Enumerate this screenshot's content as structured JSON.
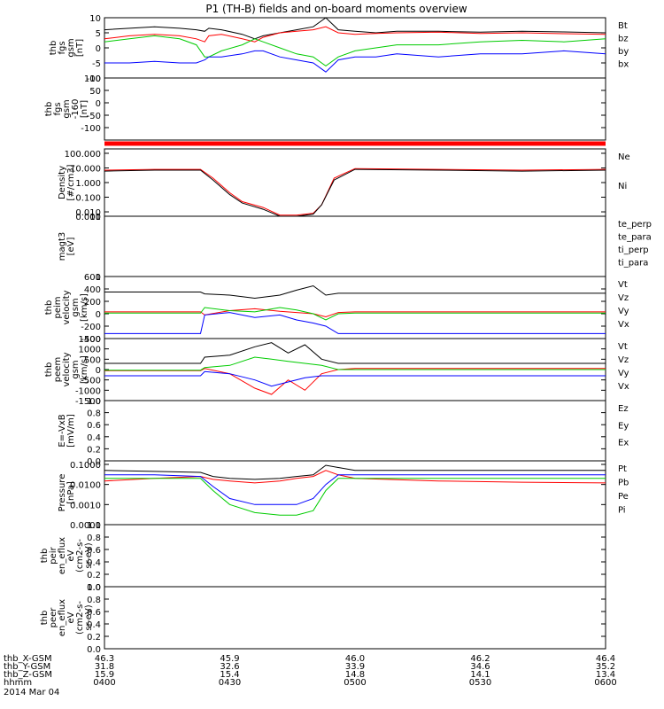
{
  "title": "P1  (TH-B) fields and on-board moments overview",
  "colors": {
    "black": "#000000",
    "red": "#ff0000",
    "green": "#00cc00",
    "blue": "#0000ff"
  },
  "chart_data": [
    {
      "id": "fgs",
      "type": "line",
      "ylabel": [
        "thb",
        "fgs",
        "gsm",
        "[nT]"
      ],
      "ylim": [
        -10,
        10
      ],
      "yticks": [
        10,
        5,
        0,
        -5,
        -10
      ],
      "legend": [
        {
          "name": "Bt",
          "color": "black"
        },
        {
          "name": "bz",
          "color": "red"
        },
        {
          "name": "by",
          "color": "green"
        },
        {
          "name": "bx",
          "color": "blue"
        }
      ],
      "time_range": [
        "0400",
        "0600"
      ],
      "series": [
        {
          "name": "Bt",
          "color": "black",
          "x": [
            0,
            6,
            12,
            18,
            22,
            24,
            25,
            28,
            33,
            36,
            38,
            42,
            46,
            50,
            53,
            56,
            60,
            65,
            70,
            80,
            90,
            100,
            110,
            120
          ],
          "y": [
            6,
            6.5,
            7,
            6.5,
            6,
            5.5,
            6.5,
            6,
            4.5,
            3,
            4,
            5,
            6,
            7,
            10,
            6,
            5.5,
            5,
            5.5,
            5.5,
            5.2,
            5.5,
            5.3,
            5
          ]
        },
        {
          "name": "bz",
          "color": "red",
          "x": [
            0,
            6,
            12,
            18,
            22,
            24,
            25,
            28,
            33,
            36,
            38,
            42,
            46,
            50,
            53,
            56,
            60,
            65,
            70,
            80,
            90,
            100,
            110,
            120
          ],
          "y": [
            3,
            4,
            4.5,
            4,
            3,
            2,
            4,
            4.5,
            3,
            2,
            3.5,
            5,
            5.5,
            6,
            7,
            5,
            4.5,
            4.8,
            5,
            5.2,
            4.8,
            5,
            4.7,
            4.5
          ]
        },
        {
          "name": "by",
          "color": "green",
          "x": [
            0,
            6,
            12,
            18,
            22,
            24,
            25,
            28,
            33,
            36,
            38,
            42,
            46,
            50,
            53,
            56,
            60,
            65,
            70,
            80,
            90,
            100,
            110,
            120
          ],
          "y": [
            2,
            3,
            4,
            3,
            1,
            -3,
            -3,
            -1,
            1,
            3,
            2,
            0,
            -2,
            -3,
            -6,
            -3,
            -1,
            0,
            1,
            1,
            2,
            2.5,
            2,
            3
          ]
        },
        {
          "name": "bx",
          "color": "blue",
          "x": [
            0,
            6,
            12,
            18,
            22,
            24,
            25,
            28,
            33,
            36,
            38,
            42,
            46,
            50,
            53,
            56,
            60,
            65,
            70,
            80,
            90,
            100,
            110,
            120
          ],
          "y": [
            -5,
            -5,
            -4.5,
            -5,
            -5,
            -4,
            -3,
            -3,
            -2,
            -1,
            -1,
            -3,
            -4,
            -5,
            -8,
            -4,
            -3,
            -3,
            -2,
            -3,
            -2,
            -2,
            -1,
            -2
          ]
        }
      ]
    },
    {
      "id": "fgs-160",
      "type": "line",
      "ylabel": [
        "thb",
        "fgs",
        "gsm",
        "-160",
        "[nT]"
      ],
      "ylim": [
        -150,
        100
      ],
      "yticks": [
        100,
        50,
        0,
        -50,
        -100
      ],
      "legend": [],
      "time_range": [
        "0400",
        "0600"
      ],
      "series": []
    },
    {
      "id": "density",
      "type": "line",
      "yscale": "log",
      "ylabel": [
        "Density",
        "[#/cm3]"
      ],
      "ylim": [
        0.005,
        200
      ],
      "yticks": [
        "100.000",
        "10.000",
        "1.000",
        "0.100",
        "0.010",
        "0.001"
      ],
      "ytick_values": [
        100,
        10,
        1,
        0.1,
        0.01,
        0.001
      ],
      "legend": [
        {
          "name": "Ne",
          "color": "red"
        },
        {
          "name": "Ni",
          "color": "black"
        }
      ],
      "time_range": [
        "0400",
        "0600"
      ],
      "series": [
        {
          "name": "Ne",
          "color": "red",
          "x": [
            0,
            12,
            23,
            26,
            30,
            33,
            38,
            42,
            46,
            50,
            52,
            55,
            60,
            80,
            100,
            120
          ],
          "y": [
            7,
            8,
            8,
            2,
            0.2,
            0.05,
            0.02,
            0.006,
            0.006,
            0.008,
            0.03,
            2,
            9,
            8,
            7,
            8
          ]
        },
        {
          "name": "Ni",
          "color": "black",
          "x": [
            0,
            12,
            23,
            26,
            30,
            33,
            38,
            42,
            46,
            50,
            52,
            55,
            60,
            80,
            100,
            120
          ],
          "y": [
            6,
            7,
            7,
            1.5,
            0.15,
            0.04,
            0.015,
            0.005,
            0.005,
            0.007,
            0.03,
            1.5,
            8,
            7,
            6,
            7
          ]
        }
      ]
    },
    {
      "id": "mag",
      "type": "line",
      "yscale": "log",
      "ylabel": [
        "magt3",
        "[eV]"
      ],
      "ylim": [
        1,
        10
      ],
      "yticks": [
        "10",
        "1"
      ],
      "ytick_values": [
        10,
        1
      ],
      "legend": [
        {
          "name": "te_perp",
          "color": "black"
        },
        {
          "name": "te_para",
          "color": "red"
        },
        {
          "name": "ti_perp",
          "color": "green"
        },
        {
          "name": "ti_para",
          "color": "blue"
        }
      ],
      "time_range": [
        "0400",
        "0600"
      ],
      "series": []
    },
    {
      "id": "peim",
      "type": "line",
      "ylabel": [
        "thb",
        "peim",
        "velocity",
        "gsm",
        "[km/s]"
      ],
      "ylim": [
        -400,
        600
      ],
      "yticks": [
        600,
        400,
        200,
        0,
        -200,
        -400
      ],
      "legend": [
        {
          "name": "Vt",
          "color": "black"
        },
        {
          "name": "Vz",
          "color": "red"
        },
        {
          "name": "Vy",
          "color": "green"
        },
        {
          "name": "Vx",
          "color": "blue"
        }
      ],
      "time_range": [
        "0400",
        "0600"
      ],
      "series": [
        {
          "name": "Vt",
          "color": "black",
          "x": [
            0,
            23,
            24,
            30,
            36,
            42,
            46,
            50,
            53,
            56,
            60,
            80,
            100,
            120
          ],
          "y": [
            350,
            350,
            320,
            300,
            250,
            300,
            380,
            450,
            300,
            330,
            330,
            330,
            330,
            330
          ]
        },
        {
          "name": "Vz",
          "color": "red",
          "x": [
            0,
            23,
            24,
            30,
            36,
            42,
            46,
            50,
            53,
            56,
            60,
            80,
            100,
            120
          ],
          "y": [
            30,
            30,
            -20,
            50,
            80,
            40,
            20,
            0,
            -50,
            20,
            30,
            30,
            30,
            30
          ]
        },
        {
          "name": "Vy",
          "color": "green",
          "x": [
            0,
            23,
            24,
            30,
            36,
            42,
            46,
            50,
            53,
            56,
            60,
            80,
            100,
            120
          ],
          "y": [
            10,
            10,
            100,
            50,
            30,
            100,
            60,
            0,
            -100,
            0,
            10,
            10,
            10,
            10
          ]
        },
        {
          "name": "Vx",
          "color": "blue",
          "x": [
            0,
            23,
            24,
            30,
            36,
            42,
            46,
            50,
            53,
            56,
            60,
            80,
            100,
            120
          ],
          "y": [
            -320,
            -320,
            -20,
            20,
            -60,
            -20,
            -100,
            -150,
            -200,
            -320,
            -320,
            -320,
            -320,
            -320
          ]
        }
      ]
    },
    {
      "id": "peem",
      "type": "line",
      "ylabel": [
        "thb",
        "peem",
        "velocity",
        "gsm",
        "[km/s]"
      ],
      "ylim": [
        -1500,
        1500
      ],
      "yticks": [
        1500,
        1000,
        500,
        0,
        -500,
        -1000,
        -1500
      ],
      "legend": [
        {
          "name": "Vt",
          "color": "black"
        },
        {
          "name": "Vz",
          "color": "red"
        },
        {
          "name": "Vy",
          "color": "green"
        },
        {
          "name": "Vx",
          "color": "blue"
        }
      ],
      "time_range": [
        "0400",
        "0600"
      ],
      "series": [
        {
          "name": "Vt",
          "color": "black",
          "x": [
            0,
            23,
            24,
            30,
            36,
            40,
            44,
            48,
            52,
            56,
            60,
            80,
            100,
            120
          ],
          "y": [
            300,
            300,
            600,
            700,
            1100,
            1300,
            800,
            1200,
            500,
            300,
            300,
            300,
            300,
            300
          ]
        },
        {
          "name": "Vz",
          "color": "red",
          "x": [
            0,
            23,
            24,
            30,
            36,
            40,
            44,
            48,
            52,
            56,
            60,
            80,
            100,
            120
          ],
          "y": [
            -50,
            -50,
            50,
            -200,
            -900,
            -1200,
            -500,
            -1000,
            -200,
            0,
            50,
            50,
            50,
            50
          ]
        },
        {
          "name": "Vy",
          "color": "green",
          "x": [
            0,
            23,
            24,
            30,
            36,
            40,
            44,
            48,
            52,
            56,
            60,
            80,
            100,
            120
          ],
          "y": [
            -30,
            -30,
            100,
            200,
            600,
            500,
            400,
            300,
            200,
            0,
            0,
            0,
            0,
            0
          ]
        },
        {
          "name": "Vx",
          "color": "blue",
          "x": [
            0,
            23,
            24,
            30,
            36,
            40,
            44,
            48,
            52,
            56,
            60,
            80,
            100,
            120
          ],
          "y": [
            -300,
            -300,
            -100,
            -200,
            -500,
            -800,
            -600,
            -400,
            -300,
            -300,
            -300,
            -300,
            -300,
            -300
          ]
        }
      ]
    },
    {
      "id": "efield",
      "type": "line",
      "ylabel": [
        "E=-VxB",
        "[mV/m]"
      ],
      "ylim": [
        0,
        1
      ],
      "yticks": [
        "1.0",
        "0.8",
        "0.6",
        "0.4",
        "0.2",
        "0.0"
      ],
      "ytick_values": [
        1,
        0.8,
        0.6,
        0.4,
        0.2,
        0
      ],
      "legend": [
        {
          "name": "Ez",
          "color": "red"
        },
        {
          "name": "Ey",
          "color": "green"
        },
        {
          "name": "Ex",
          "color": "blue"
        }
      ],
      "time_range": [
        "0400",
        "0600"
      ],
      "series": []
    },
    {
      "id": "pressure",
      "type": "line",
      "yscale": "log",
      "ylabel": [
        "Pressure",
        "[nPa]"
      ],
      "ylim": [
        0.0001,
        0.15
      ],
      "yticks": [
        "0.1000",
        "0.0100",
        "0.0010",
        "0.0001"
      ],
      "ytick_values": [
        0.1,
        0.01,
        0.001,
        0.0001
      ],
      "legend": [
        {
          "name": "Pt",
          "color": "black"
        },
        {
          "name": "Pb",
          "color": "red"
        },
        {
          "name": "Pe",
          "color": "green"
        },
        {
          "name": "Pi",
          "color": "blue"
        }
      ],
      "time_range": [
        "0400",
        "0600"
      ],
      "series": [
        {
          "name": "Pt",
          "color": "black",
          "x": [
            0,
            12,
            23,
            26,
            30,
            36,
            42,
            46,
            50,
            53,
            56,
            60,
            80,
            100,
            120
          ],
          "y": [
            0.05,
            0.045,
            0.04,
            0.025,
            0.02,
            0.018,
            0.02,
            0.025,
            0.03,
            0.09,
            0.07,
            0.05,
            0.05,
            0.05,
            0.05
          ]
        },
        {
          "name": "Pb",
          "color": "red",
          "x": [
            0,
            12,
            23,
            26,
            30,
            36,
            42,
            46,
            50,
            53,
            56,
            60,
            80,
            100,
            120
          ],
          "y": [
            0.015,
            0.02,
            0.025,
            0.018,
            0.015,
            0.012,
            0.015,
            0.02,
            0.025,
            0.05,
            0.03,
            0.02,
            0.015,
            0.013,
            0.012
          ]
        },
        {
          "name": "Pe",
          "color": "green",
          "x": [
            0,
            12,
            23,
            26,
            30,
            36,
            42,
            46,
            50,
            53,
            56,
            60,
            80,
            100,
            120
          ],
          "y": [
            0.02,
            0.02,
            0.02,
            0.005,
            0.001,
            0.0004,
            0.0003,
            0.0003,
            0.0005,
            0.005,
            0.02,
            0.02,
            0.02,
            0.02,
            0.02
          ]
        },
        {
          "name": "Pi",
          "color": "blue",
          "x": [
            0,
            12,
            23,
            26,
            30,
            36,
            42,
            46,
            50,
            53,
            56,
            60,
            80,
            100,
            120
          ],
          "y": [
            0.03,
            0.03,
            0.025,
            0.008,
            0.002,
            0.001,
            0.001,
            0.001,
            0.002,
            0.01,
            0.03,
            0.03,
            0.03,
            0.03,
            0.03
          ]
        }
      ]
    },
    {
      "id": "peir",
      "type": "line",
      "ylabel": [
        "thb",
        "peir",
        "en_eflux",
        "eV",
        "(cm2-s-",
        "sr-eV)"
      ],
      "ylim": [
        0,
        1
      ],
      "yticks": [
        "1.0",
        "0.8",
        "0.6",
        "0.4",
        "0.2",
        "0.0"
      ],
      "ytick_values": [
        1,
        0.8,
        0.6,
        0.4,
        0.2,
        0
      ],
      "legend": [],
      "time_range": [
        "0400",
        "0600"
      ],
      "series": []
    },
    {
      "id": "peer",
      "type": "line",
      "ylabel": [
        "thb",
        "peer",
        "en_eflux",
        "eV",
        "(cm2-s-",
        "sr-eV)"
      ],
      "ylim": [
        0,
        1
      ],
      "yticks": [
        "1.0",
        "0.8",
        "0.6",
        "0.4",
        "0.2",
        "0.0"
      ],
      "ytick_values": [
        1,
        0.8,
        0.6,
        0.4,
        0.2,
        0
      ],
      "legend": [],
      "time_range": [
        "0400",
        "0600"
      ],
      "series": []
    }
  ],
  "xaxis": {
    "time_range_minutes": [
      0,
      120
    ],
    "rows": [
      {
        "label": "thb_X-GSM",
        "values": [
          "46.3",
          "45.9",
          "46.0",
          "46.2",
          "46.4"
        ]
      },
      {
        "label": "thb_Y-GSM",
        "values": [
          "31.8",
          "32.6",
          "33.9",
          "34.6",
          "35.2"
        ]
      },
      {
        "label": "thb_Z-GSM",
        "values": [
          "15.9",
          "15.4",
          "14.8",
          "14.1",
          "13.4"
        ]
      },
      {
        "label": "hhmm",
        "values": [
          "0400",
          "0430",
          "0500",
          "0530",
          "0600"
        ]
      }
    ],
    "date": "2014 Mar 04"
  }
}
